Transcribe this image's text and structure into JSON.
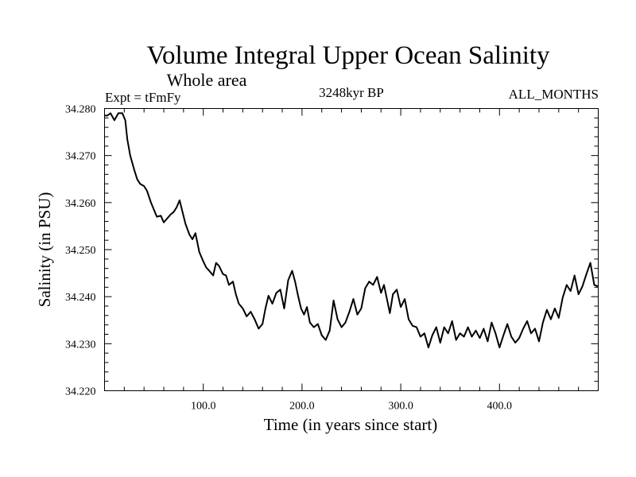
{
  "chart_data": {
    "type": "line",
    "title": "Volume Integral Upper Ocean Salinity",
    "subtitle": "Whole area",
    "experiment": "Expt = tFmFy",
    "period": "3248kyr BP",
    "months": "ALL_MONTHS",
    "xlabel": "Time (in years since start)",
    "ylabel": "Salinity (in PSU)",
    "xlim": [
      0,
      500
    ],
    "ylim": [
      34.22,
      34.28
    ],
    "x_ticks": [
      100,
      200,
      300,
      400
    ],
    "x_tick_labels": [
      "100.0",
      "200.0",
      "300.0",
      "400.0"
    ],
    "y_ticks": [
      34.22,
      34.23,
      34.24,
      34.25,
      34.26,
      34.27,
      34.28
    ],
    "y_tick_labels": [
      "34.220",
      "34.230",
      "34.240",
      "34.250",
      "34.260",
      "34.270",
      "34.280"
    ],
    "grid": false,
    "series": [
      {
        "name": "Salinity",
        "color": "#000000",
        "x": [
          0,
          3,
          6,
          10,
          14,
          18,
          21,
          23,
          26,
          30,
          33,
          36,
          40,
          43,
          47,
          50,
          53,
          57,
          60,
          63,
          67,
          70,
          73,
          76,
          79,
          82,
          86,
          89,
          92,
          96,
          100,
          103,
          106,
          110,
          113,
          116,
          120,
          123,
          126,
          130,
          133,
          136,
          140,
          144,
          148,
          152,
          156,
          160,
          163,
          166,
          170,
          174,
          178,
          182,
          186,
          190,
          193,
          196,
          199,
          202,
          205,
          208,
          212,
          216,
          220,
          224,
          228,
          232,
          236,
          240,
          244,
          248,
          252,
          256,
          260,
          264,
          268,
          272,
          276,
          280,
          283,
          286,
          289,
          292,
          296,
          300,
          304,
          308,
          312,
          316,
          320,
          324,
          328,
          332,
          336,
          340,
          344,
          348,
          352,
          356,
          360,
          364,
          368,
          372,
          376,
          380,
          384,
          388,
          392,
          396,
          400,
          404,
          408,
          412,
          416,
          420,
          424,
          428,
          432,
          436,
          440,
          444,
          448,
          452,
          456,
          460,
          464,
          468,
          472,
          476,
          480,
          484,
          488,
          492,
          496,
          500
        ],
        "values": [
          34.2785,
          34.2785,
          34.279,
          34.2775,
          34.279,
          34.279,
          34.2775,
          34.2735,
          34.27,
          34.267,
          34.265,
          34.264,
          34.2635,
          34.2625,
          34.26,
          34.2585,
          34.257,
          34.2572,
          34.2558,
          34.2565,
          34.2575,
          34.258,
          34.259,
          34.2605,
          34.258,
          34.2555,
          34.2532,
          34.2522,
          34.2535,
          34.2495,
          34.2475,
          34.2462,
          34.2455,
          34.2445,
          34.2472,
          34.2465,
          34.2448,
          34.2445,
          34.2425,
          34.2432,
          34.2405,
          34.2385,
          34.2375,
          34.2358,
          34.2368,
          34.2352,
          34.2332,
          34.2342,
          34.2375,
          34.2402,
          34.2385,
          34.2408,
          34.2415,
          34.2375,
          34.2435,
          34.2455,
          34.2432,
          34.2402,
          34.2375,
          34.2362,
          34.2378,
          34.2345,
          34.2335,
          34.2342,
          34.2318,
          34.2308,
          34.2328,
          34.2392,
          34.2352,
          34.2335,
          34.2345,
          34.2368,
          34.2395,
          34.2362,
          34.2375,
          34.2418,
          34.2432,
          34.2425,
          34.2442,
          34.2408,
          34.2425,
          34.2395,
          34.2365,
          34.2405,
          34.2415,
          34.2378,
          34.2395,
          34.2352,
          34.2338,
          34.2335,
          34.2315,
          34.2322,
          34.2292,
          34.2318,
          34.2335,
          34.2302,
          34.2335,
          34.2322,
          34.2348,
          34.2308,
          34.2322,
          34.2315,
          34.2335,
          34.2315,
          34.2328,
          34.2312,
          34.2332,
          34.2305,
          34.2345,
          34.2322,
          34.2292,
          34.2318,
          34.2342,
          34.2315,
          34.2302,
          34.2312,
          34.2332,
          34.2348,
          34.2322,
          34.2332,
          34.2305,
          34.2345,
          34.2372,
          34.2352,
          34.2375,
          34.2355,
          34.2398,
          34.2425,
          34.2412,
          34.2445,
          34.2405,
          34.2422,
          34.2448,
          34.2472,
          34.2425,
          34.2422
        ]
      }
    ]
  }
}
